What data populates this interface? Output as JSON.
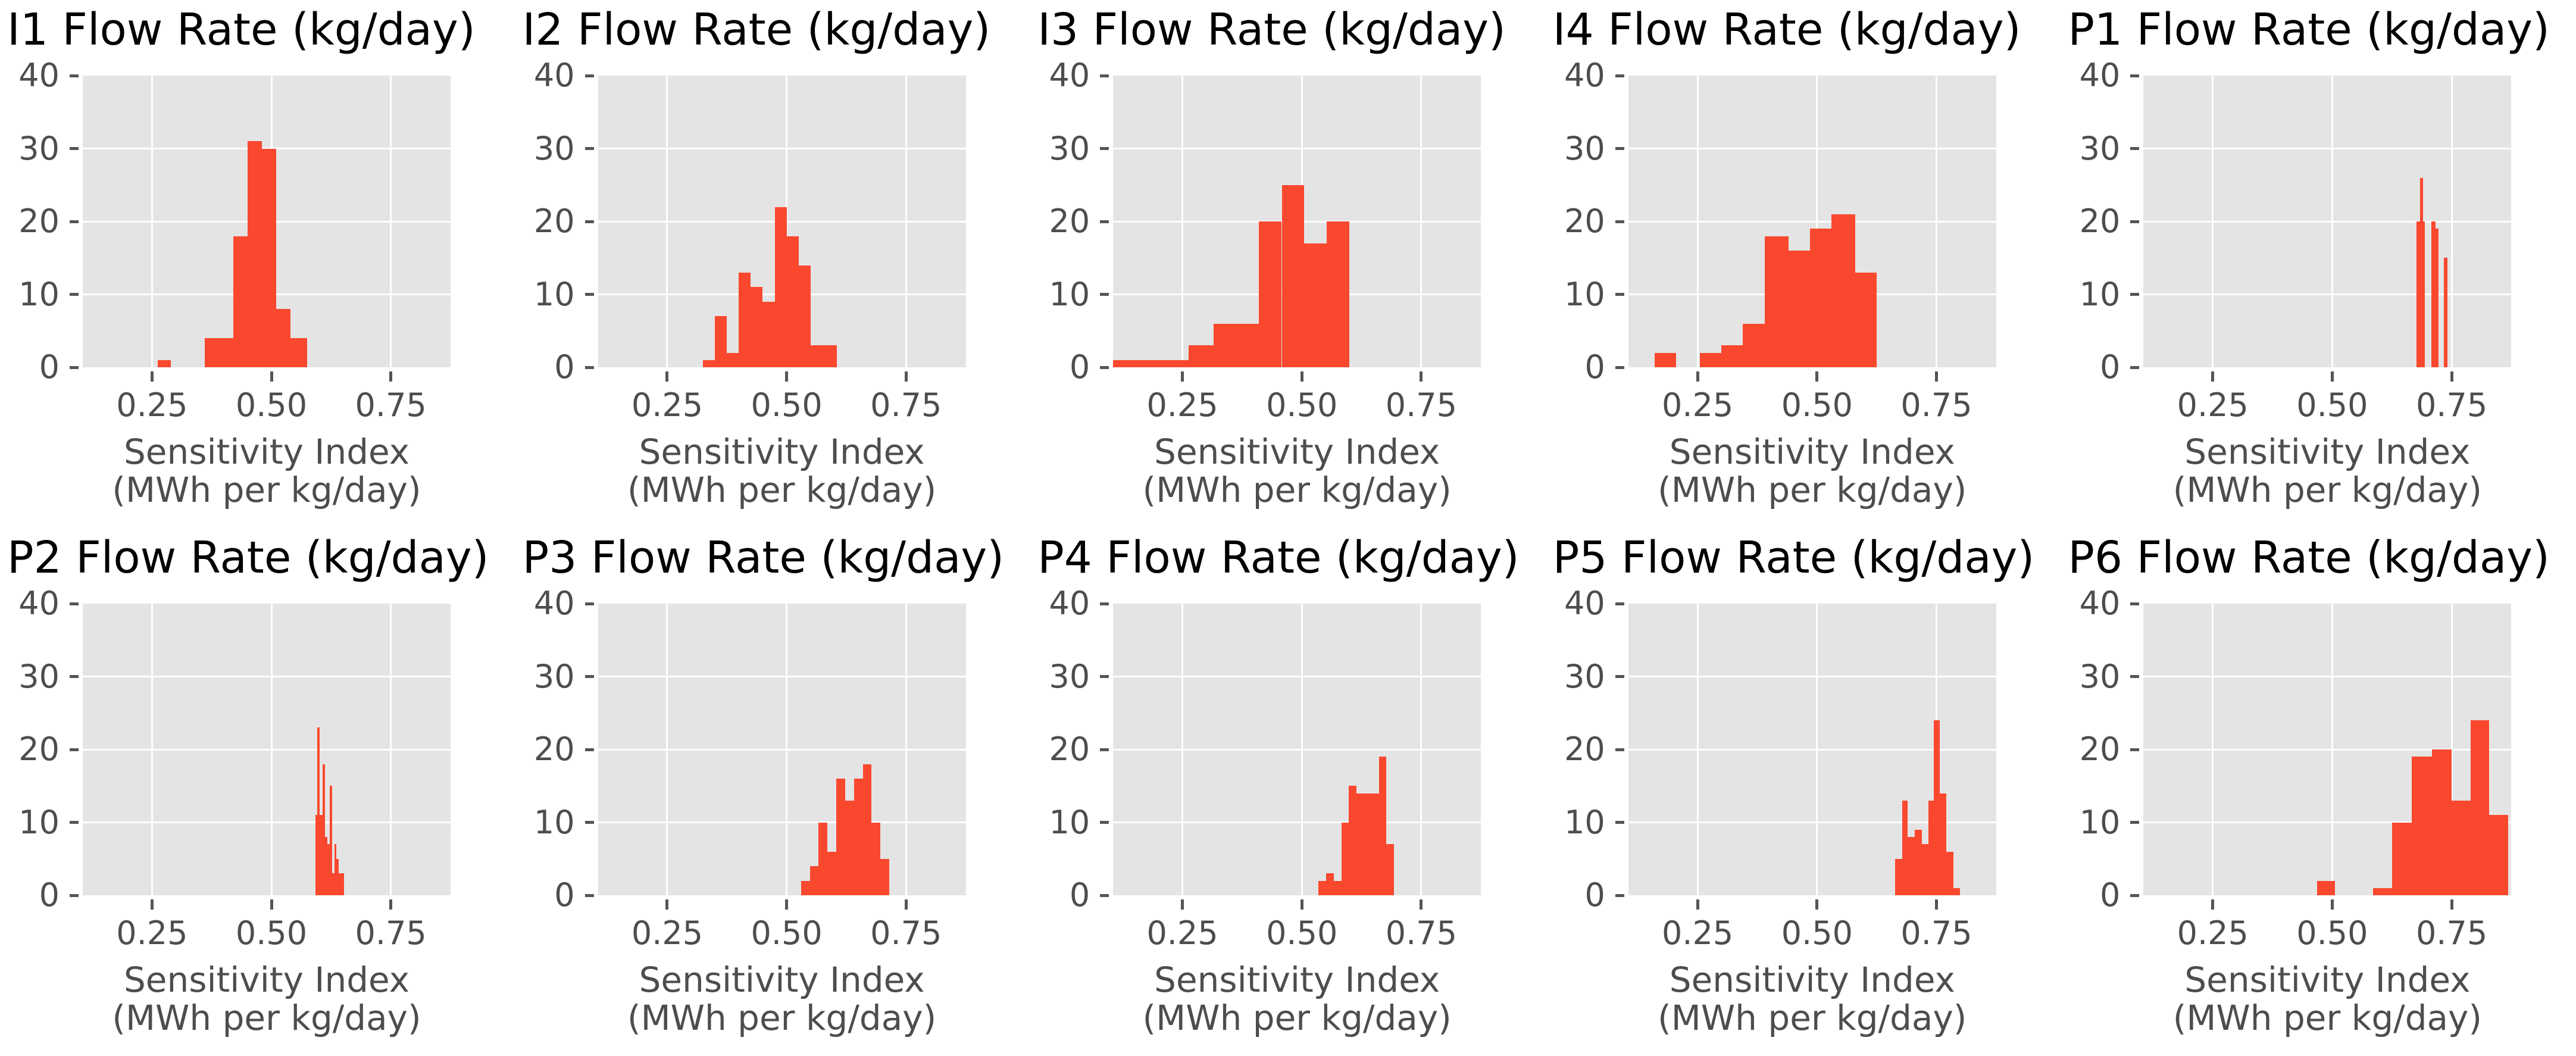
{
  "figure": {
    "background": "#ffffff",
    "rows": 2,
    "cols": 5
  },
  "colors": {
    "bar": "#f9482e",
    "panel_background": "#e4e4e4",
    "gridline": "#ffffff",
    "tick_text": "#4d4d4d",
    "title_text": "#000000"
  },
  "axes": {
    "xlabel_line1": "Sensitivity Index",
    "xlabel_line2": "(MWh per kg/day)",
    "xticks": [
      0.25,
      0.5,
      0.75
    ],
    "yticks": [
      0,
      10,
      20,
      30,
      40
    ],
    "xlim": [
      0.105,
      0.875
    ],
    "ylim": [
      0,
      40
    ],
    "grid": true
  },
  "chart_data": [
    {
      "type": "bar",
      "id": "I1",
      "title": "I1 Flow Rate (kg/day)",
      "xlabel": "Sensitivity Index (MWh per kg/day)",
      "ylim": [
        0,
        40
      ],
      "bins": [
        [
          0.262,
          0.29,
          1
        ],
        [
          0.36,
          0.42,
          4
        ],
        [
          0.42,
          0.45,
          18
        ],
        [
          0.45,
          0.48,
          31
        ],
        [
          0.48,
          0.51,
          30
        ],
        [
          0.51,
          0.54,
          8
        ],
        [
          0.54,
          0.575,
          4
        ]
      ]
    },
    {
      "type": "bar",
      "id": "I2",
      "title": "I2 Flow Rate (kg/day)",
      "xlabel": "Sensitivity Index (MWh per kg/day)",
      "ylim": [
        0,
        40
      ],
      "bins": [
        [
          0.325,
          0.35,
          1
        ],
        [
          0.35,
          0.375,
          7
        ],
        [
          0.375,
          0.4,
          2
        ],
        [
          0.4,
          0.425,
          13
        ],
        [
          0.425,
          0.45,
          11
        ],
        [
          0.45,
          0.475,
          9
        ],
        [
          0.475,
          0.5,
          22
        ],
        [
          0.5,
          0.525,
          18
        ],
        [
          0.525,
          0.55,
          14
        ],
        [
          0.55,
          0.605,
          3
        ]
      ]
    },
    {
      "type": "bar",
      "id": "I3",
      "title": "I3 Flow Rate (kg/day)",
      "xlabel": "Sensitivity Index (MWh per kg/day)",
      "ylim": [
        0,
        40
      ],
      "bins": [
        [
          0.105,
          0.263,
          1
        ],
        [
          0.263,
          0.315,
          3
        ],
        [
          0.315,
          0.41,
          6
        ],
        [
          0.41,
          0.458,
          20
        ],
        [
          0.458,
          0.505,
          25
        ],
        [
          0.505,
          0.552,
          17
        ],
        [
          0.552,
          0.6,
          20
        ]
      ]
    },
    {
      "type": "bar",
      "id": "I4",
      "title": "I4 Flow Rate (kg/day)",
      "xlabel": "Sensitivity Index (MWh per kg/day)",
      "ylim": [
        0,
        40
      ],
      "bins": [
        [
          0.16,
          0.205,
          2
        ],
        [
          0.255,
          0.3,
          2
        ],
        [
          0.3,
          0.345,
          3
        ],
        [
          0.345,
          0.39,
          6
        ],
        [
          0.39,
          0.44,
          18
        ],
        [
          0.44,
          0.485,
          16
        ],
        [
          0.485,
          0.53,
          19
        ],
        [
          0.53,
          0.58,
          21
        ],
        [
          0.58,
          0.625,
          13
        ]
      ]
    },
    {
      "type": "bar",
      "id": "P1",
      "title": "P1 Flow Rate (kg/day)",
      "xlabel": "Sensitivity Index (MWh per kg/day)",
      "ylim": [
        0,
        40
      ],
      "bins": [
        [
          0.677,
          0.684,
          20
        ],
        [
          0.684,
          0.69,
          26
        ],
        [
          0.69,
          0.694,
          20
        ],
        [
          0.707,
          0.716,
          20
        ],
        [
          0.716,
          0.723,
          19
        ],
        [
          0.734,
          0.741,
          15
        ]
      ]
    },
    {
      "type": "bar",
      "id": "P2",
      "title": "P2 Flow Rate (kg/day)",
      "xlabel": "Sensitivity Index (MWh per kg/day)",
      "ylim": [
        0,
        40
      ],
      "bins": [
        [
          0.592,
          0.596,
          11
        ],
        [
          0.596,
          0.601,
          23
        ],
        [
          0.601,
          0.607,
          11
        ],
        [
          0.607,
          0.612,
          18
        ],
        [
          0.612,
          0.617,
          8
        ],
        [
          0.617,
          0.622,
          7
        ],
        [
          0.622,
          0.627,
          15
        ],
        [
          0.627,
          0.632,
          3
        ],
        [
          0.632,
          0.636,
          7
        ],
        [
          0.636,
          0.641,
          5
        ],
        [
          0.641,
          0.652,
          3
        ]
      ]
    },
    {
      "type": "bar",
      "id": "P3",
      "title": "P3 Flow Rate (kg/day)",
      "xlabel": "Sensitivity Index (MWh per kg/day)",
      "ylim": [
        0,
        40
      ],
      "bins": [
        [
          0.53,
          0.5485,
          2
        ],
        [
          0.5485,
          0.567,
          4
        ],
        [
          0.567,
          0.5855,
          10
        ],
        [
          0.5855,
          0.604,
          6
        ],
        [
          0.604,
          0.6225,
          16
        ],
        [
          0.6225,
          0.641,
          13
        ],
        [
          0.641,
          0.6595,
          16
        ],
        [
          0.6595,
          0.678,
          18
        ],
        [
          0.678,
          0.6965,
          10
        ],
        [
          0.6965,
          0.715,
          5
        ]
      ]
    },
    {
      "type": "bar",
      "id": "P4",
      "title": "P4 Flow Rate (kg/day)",
      "xlabel": "Sensitivity Index (MWh per kg/day)",
      "ylim": [
        0,
        40
      ],
      "bins": [
        [
          0.535,
          0.551,
          2
        ],
        [
          0.551,
          0.567,
          3
        ],
        [
          0.567,
          0.583,
          2
        ],
        [
          0.583,
          0.598,
          10
        ],
        [
          0.598,
          0.614,
          15
        ],
        [
          0.614,
          0.662,
          14
        ],
        [
          0.662,
          0.677,
          19
        ],
        [
          0.677,
          0.693,
          7
        ]
      ]
    },
    {
      "type": "bar",
      "id": "P5",
      "title": "P5 Flow Rate (kg/day)",
      "xlabel": "Sensitivity Index (MWh per kg/day)",
      "ylim": [
        0,
        40
      ],
      "bins": [
        [
          0.663,
          0.678,
          5
        ],
        [
          0.678,
          0.69,
          13
        ],
        [
          0.69,
          0.705,
          8
        ],
        [
          0.705,
          0.72,
          9
        ],
        [
          0.72,
          0.733,
          7
        ],
        [
          0.733,
          0.745,
          13
        ],
        [
          0.745,
          0.757,
          24
        ],
        [
          0.757,
          0.77,
          14
        ],
        [
          0.77,
          0.785,
          6
        ],
        [
          0.785,
          0.799,
          1
        ]
      ]
    },
    {
      "type": "bar",
      "id": "P6",
      "title": "P6 Flow Rate (kg/day)",
      "xlabel": "Sensitivity Index (MWh per kg/day)",
      "ylim": [
        0,
        40
      ],
      "bins": [
        [
          0.468,
          0.506,
          2
        ],
        [
          0.585,
          0.625,
          1
        ],
        [
          0.625,
          0.667,
          10
        ],
        [
          0.667,
          0.709,
          19
        ],
        [
          0.709,
          0.75,
          20
        ],
        [
          0.75,
          0.79,
          13
        ],
        [
          0.79,
          0.828,
          24
        ],
        [
          0.828,
          0.868,
          11
        ]
      ]
    }
  ]
}
